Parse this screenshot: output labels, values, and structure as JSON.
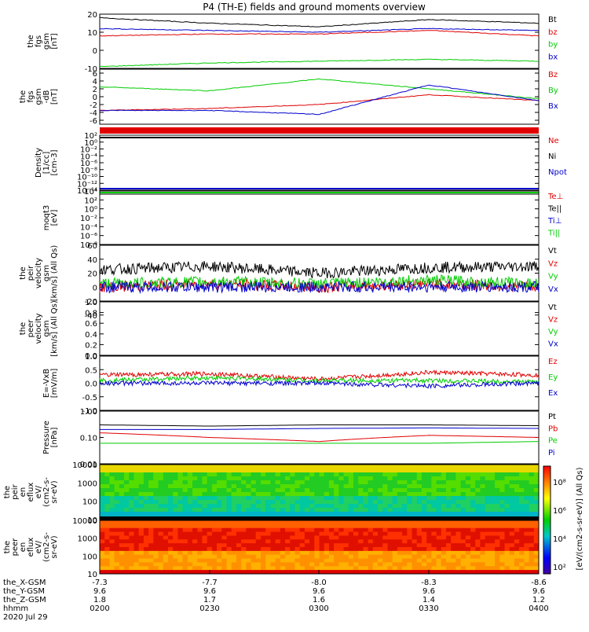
{
  "title": "P4 (TH-E) fields and ground moments overview",
  "colors": {
    "black": "#000000",
    "red": "#e00000",
    "green": "#00cc00",
    "blue": "#0000cc"
  },
  "colorbar": {
    "label": "[eV/(cm2-s-sr-eV)] (All Qs)",
    "ticks": [
      "10²",
      "10⁴",
      "10⁶",
      "10⁸"
    ]
  },
  "panels": [
    {
      "id": "fgs",
      "ylabel": [
        "the",
        "fgs",
        "gsm",
        "[nT]"
      ],
      "ylim": [
        -10,
        20
      ],
      "yticks": [
        20,
        10,
        0,
        -10
      ],
      "legend": [
        {
          "name": "Bt",
          "color": "black"
        },
        {
          "name": "bz",
          "color": "red"
        },
        {
          "name": "by",
          "color": "green"
        },
        {
          "name": "bx",
          "color": "blue"
        }
      ]
    },
    {
      "id": "fgl",
      "ylabel": [
        "the",
        "fgs",
        "gsm",
        "-dB",
        "[nT]"
      ],
      "ylim": [
        -7,
        7
      ],
      "yticks": [
        6,
        4,
        2,
        0,
        -2,
        -4,
        -6
      ],
      "legend": [
        {
          "name": "Bz",
          "color": "red"
        },
        {
          "name": "By",
          "color": "green"
        },
        {
          "name": "Bx",
          "color": "blue"
        }
      ]
    },
    {
      "id": "density",
      "ylabel": [
        "Density",
        "[1/cc]",
        "[cm-3]"
      ],
      "yticks": [
        "10²",
        "10⁰",
        "10⁻²",
        "10⁻⁴",
        "10⁻⁶",
        "10⁻⁸",
        "10⁻¹⁰",
        "10⁻¹²",
        "10⁻¹⁴"
      ],
      "legend": [
        {
          "name": "Ne",
          "color": "red"
        },
        {
          "name": "Ni",
          "color": "black"
        },
        {
          "name": "Npot",
          "color": "blue"
        }
      ]
    },
    {
      "id": "temp",
      "ylabel": [
        "moqt3",
        "[eV]"
      ],
      "yticks": [
        "10⁴",
        "10²",
        "10⁰",
        "10⁻²",
        "10⁻⁴",
        "10⁻⁶",
        "10⁻⁸"
      ],
      "legend": [
        {
          "name": "Te⊥",
          "color": "red"
        },
        {
          "name": "Te||",
          "color": "black"
        },
        {
          "name": "Ti⊥",
          "color": "blue"
        },
        {
          "name": "Ti||",
          "color": "green"
        }
      ]
    },
    {
      "id": "peir_vel",
      "ylabel": [
        "the",
        "peir",
        "velocity",
        "gsm",
        "[km/s] (All Qs)"
      ],
      "ylim": [
        -20,
        60
      ],
      "yticks": [
        60,
        40,
        20,
        0,
        -20,
        -40
      ],
      "legend": [
        {
          "name": "Vt",
          "color": "black"
        },
        {
          "name": "Vz",
          "color": "red"
        },
        {
          "name": "Vy",
          "color": "green"
        },
        {
          "name": "Vx",
          "color": "blue"
        }
      ]
    },
    {
      "id": "peer_vel",
      "ylabel": [
        "the",
        "peer",
        "velocity",
        "gsm",
        "[km/s] (All Qs)"
      ],
      "yticks": [
        "1.0",
        "0.8",
        "0.6",
        "0.4",
        "0.2",
        "0.0"
      ],
      "legend": [
        {
          "name": "Vt",
          "color": "black"
        },
        {
          "name": "Vz",
          "color": "red"
        },
        {
          "name": "Vy",
          "color": "green"
        },
        {
          "name": "Vx",
          "color": "blue"
        }
      ]
    },
    {
      "id": "efield",
      "ylabel": [
        "E=-VxB",
        "[mV/m]"
      ],
      "ylim": [
        -1,
        1
      ],
      "yticks": [
        "1.0",
        "0.5",
        "0.0",
        "-0.5",
        "-1.0"
      ],
      "legend": [
        {
          "name": "Ez",
          "color": "red"
        },
        {
          "name": "Ey",
          "color": "green"
        },
        {
          "name": "Ex",
          "color": "blue"
        }
      ]
    },
    {
      "id": "pressure",
      "ylabel": [
        "Pressure",
        "[nPa]"
      ],
      "yticks": [
        "1.00",
        "0.10",
        "0.01"
      ],
      "legend": [
        {
          "name": "Pt",
          "color": "black"
        },
        {
          "name": "Pb",
          "color": "red"
        },
        {
          "name": "Pe",
          "color": "green"
        },
        {
          "name": "Pi",
          "color": "blue"
        }
      ]
    },
    {
      "id": "peir_en",
      "ylabel": [
        "the",
        "peir",
        "en",
        "eflux",
        "eV/",
        "(cm2-s-",
        "sr-eV)"
      ],
      "yticks": [
        "10000",
        "1000",
        "100",
        "10"
      ]
    },
    {
      "id": "peer_en",
      "ylabel": [
        "the",
        "peer",
        "en",
        "eflux",
        "eV/",
        "(cm2-s-",
        "sr-eV)"
      ],
      "yticks": [
        "10000",
        "1000",
        "100",
        "10"
      ]
    }
  ],
  "xaxis": {
    "rows": [
      {
        "label": "the_X-GSM",
        "values": [
          "-7.3",
          "-7.7",
          "-8.0",
          "-8.3",
          "-8.6"
        ]
      },
      {
        "label": "the_Y-GSM",
        "values": [
          "9.6",
          "9.6",
          "9.6",
          "9.6",
          "9.6"
        ]
      },
      {
        "label": "the_Z-GSM",
        "values": [
          "1.8",
          "1.7",
          "1.6",
          "1.4",
          "1.2"
        ]
      },
      {
        "label": "hhmm",
        "values": [
          "0200",
          "0230",
          "0300",
          "0330",
          "0400"
        ]
      }
    ],
    "date": "2020 Jul 29"
  },
  "chart_data": {
    "type": "line",
    "title": "P4 (TH-E) fields and ground moments overview",
    "x": [
      "0200",
      "0230",
      "0300",
      "0330",
      "0400"
    ],
    "panels": [
      {
        "id": "fgs",
        "series": [
          {
            "name": "Bt",
            "values": [
              18,
              15,
              13,
              17,
              15
            ]
          },
          {
            "name": "bz",
            "values": [
              8,
              9,
              9,
              11,
              8
            ]
          },
          {
            "name": "by",
            "values": [
              -9,
              -7,
              -6,
              -5,
              -6
            ]
          },
          {
            "name": "bx",
            "values": [
              12,
              11,
              10,
              12,
              11
            ]
          }
        ]
      },
      {
        "id": "fgl",
        "series": [
          {
            "name": "Bz",
            "values": [
              -3.5,
              -3,
              -2,
              0.5,
              -1
            ]
          },
          {
            "name": "By",
            "values": [
              2.5,
              1.5,
              4.5,
              2,
              -0.5
            ]
          },
          {
            "name": "Bx",
            "values": [
              -3.5,
              -3.5,
              -4.5,
              3,
              -1
            ]
          }
        ]
      },
      {
        "id": "peir_vel",
        "series": [
          {
            "name": "Vt",
            "values": [
              25,
              30,
              20,
              28,
              30
            ]
          },
          {
            "name": "Vz",
            "values": [
              0,
              5,
              0,
              5,
              0
            ]
          },
          {
            "name": "Vy",
            "values": [
              5,
              8,
              5,
              10,
              5
            ]
          },
          {
            "name": "Vx",
            "values": [
              0,
              0,
              0,
              0,
              0
            ]
          }
        ]
      },
      {
        "id": "efield",
        "series": [
          {
            "name": "Ez",
            "values": [
              0.3,
              0.35,
              0.15,
              0.4,
              0.3
            ]
          },
          {
            "name": "Ey",
            "values": [
              0.1,
              0.2,
              0.1,
              0.1,
              0.05
            ]
          },
          {
            "name": "Ex",
            "values": [
              0,
              0,
              0,
              -0.1,
              0
            ]
          }
        ]
      },
      {
        "id": "pressure",
        "series": [
          {
            "name": "Pt",
            "values": [
              0.3,
              0.27,
              0.3,
              0.3,
              0.28
            ]
          },
          {
            "name": "Pb",
            "values": [
              0.15,
              0.1,
              0.07,
              0.12,
              0.1
            ]
          },
          {
            "name": "Pe",
            "values": [
              0.06,
              0.06,
              0.06,
              0.06,
              0.07
            ]
          },
          {
            "name": "Pi",
            "values": [
              0.2,
              0.2,
              0.22,
              0.23,
              0.22
            ]
          }
        ]
      }
    ]
  }
}
